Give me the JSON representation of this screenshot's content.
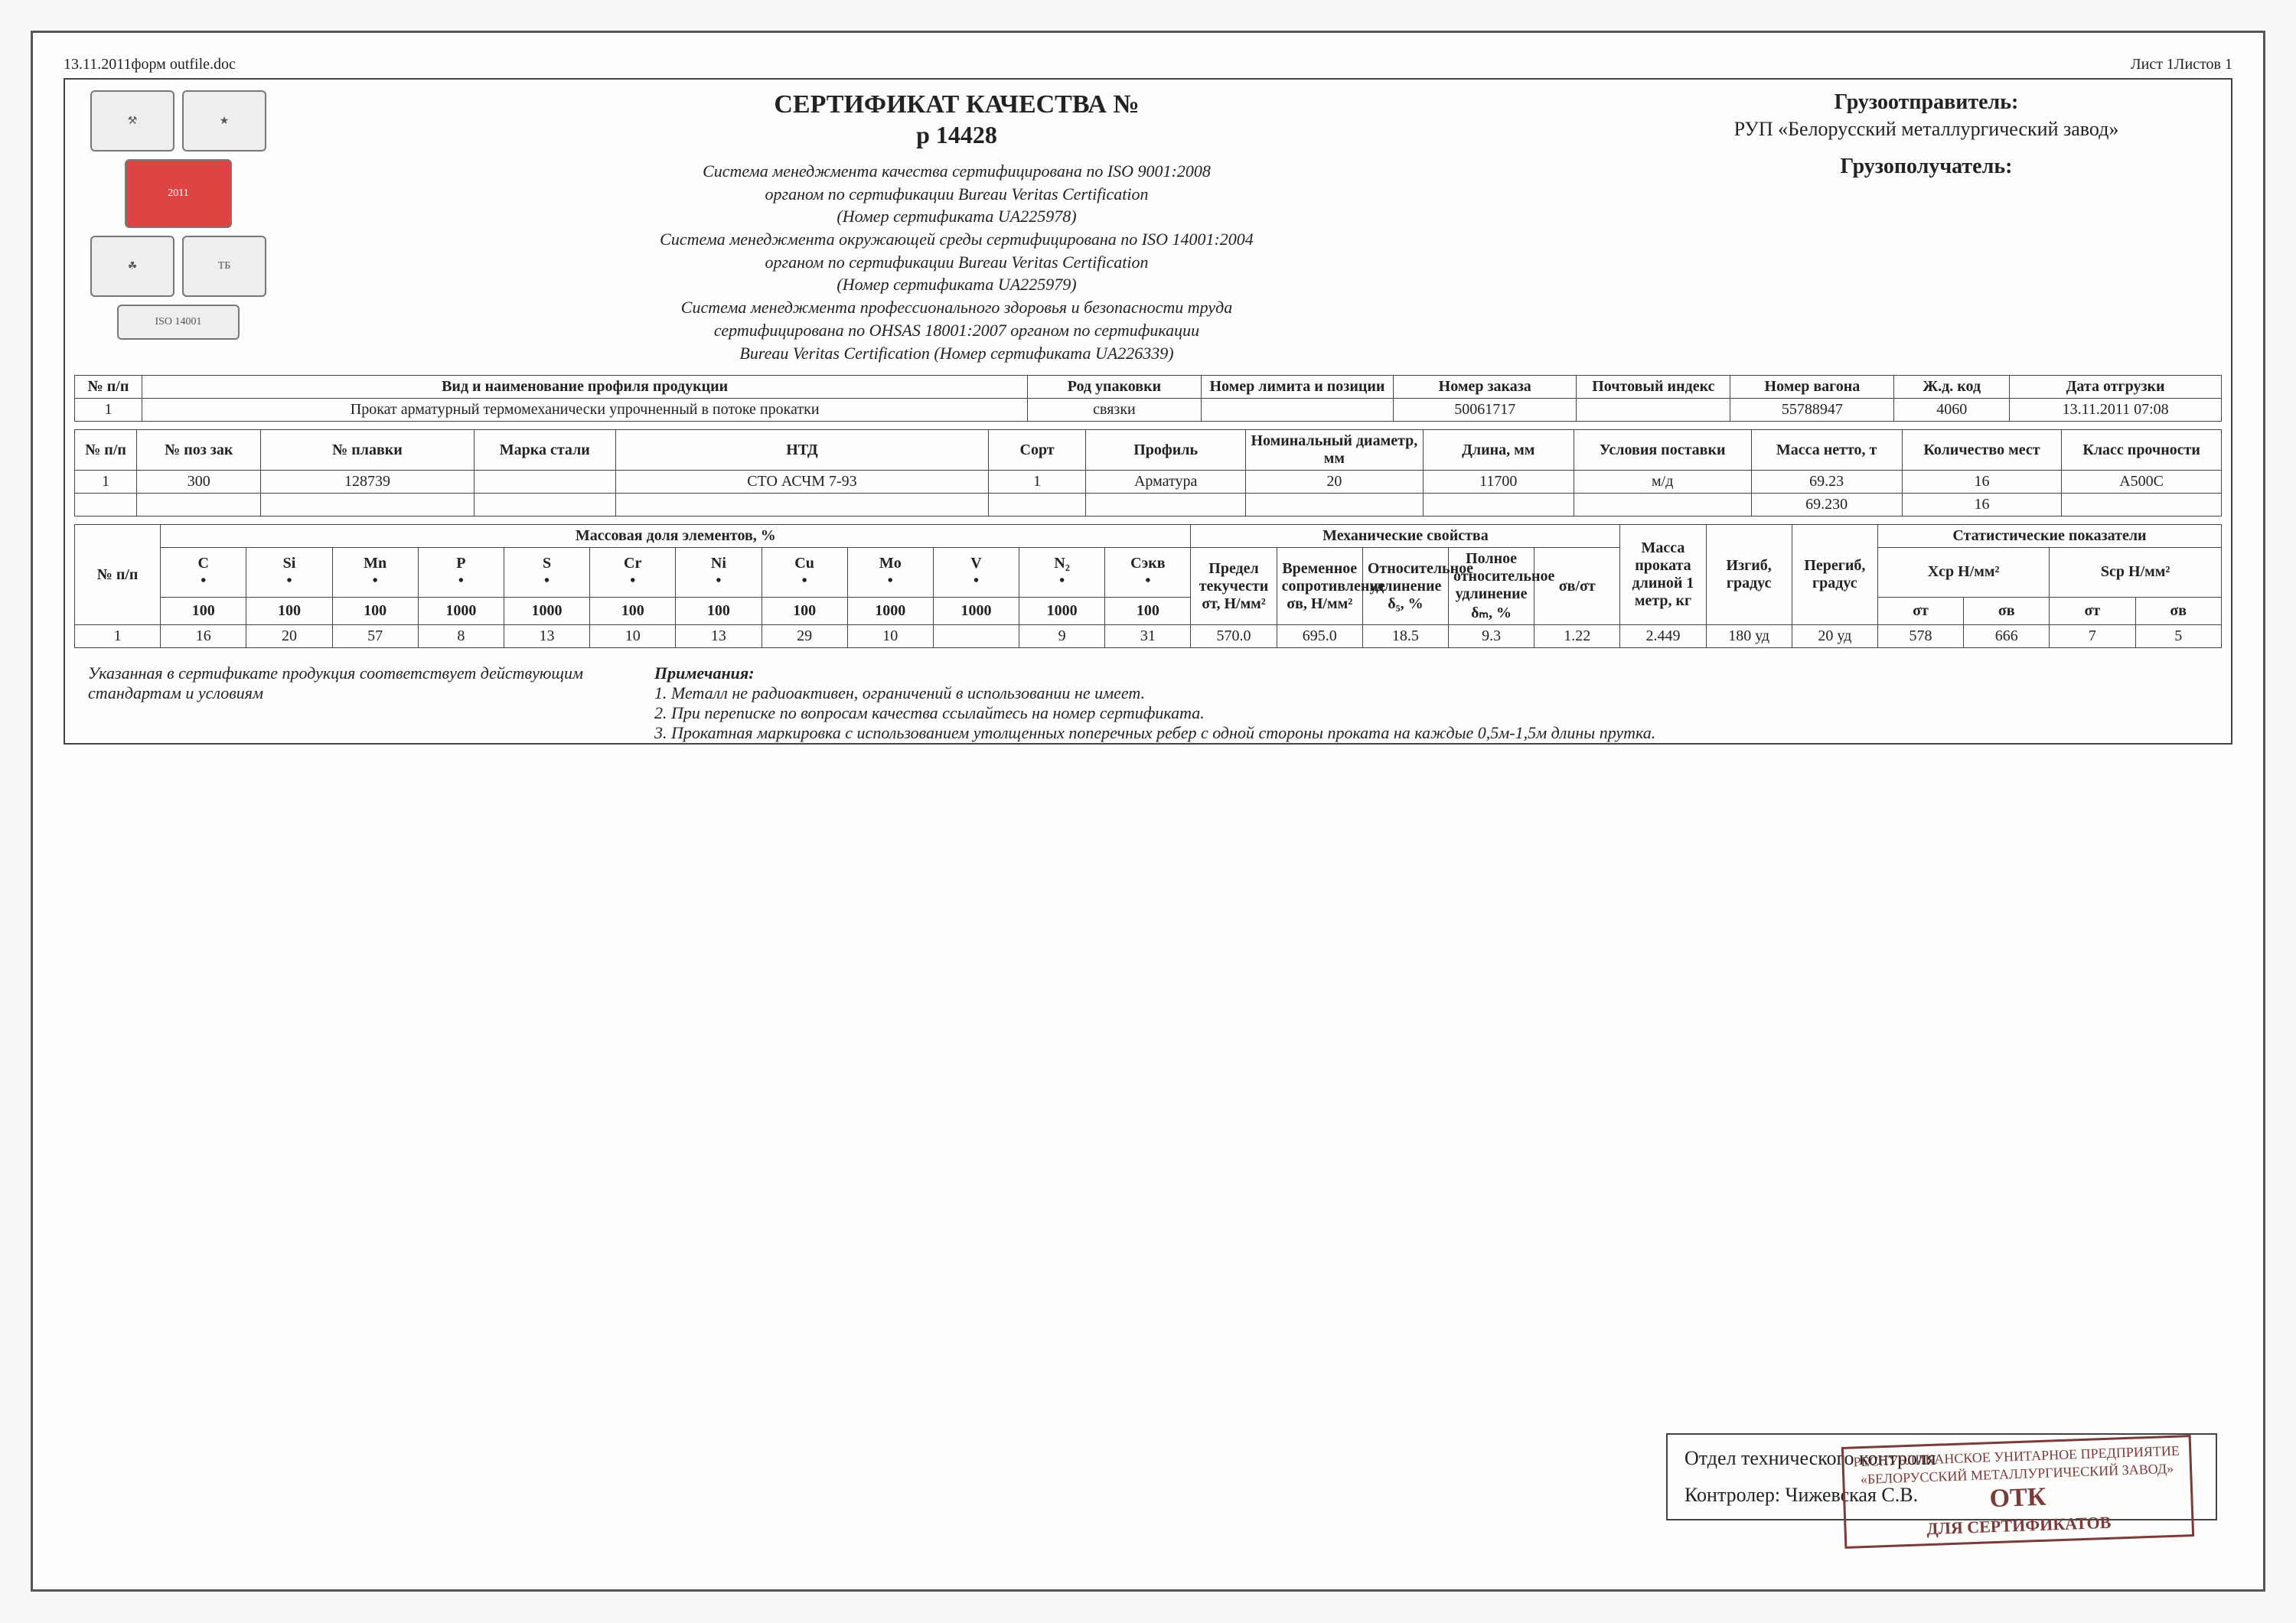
{
  "doc_header": {
    "left": "13.11.2011форм outfile.doc",
    "right": "Лист 1Листов 1"
  },
  "header": {
    "title": "СЕРТИФИКАТ КАЧЕСТВА №",
    "number": "р 14428",
    "systems": [
      "Система менеджмента качества сертифицирована по ISO 9001:2008",
      "органом по сертификации Bureau Veritas Certification",
      "(Номер сертификата UA225978)",
      "Система менеджмента окружающей среды сертифицирована по ISO 14001:2004",
      "органом по сертификации Bureau Veritas Certification",
      "(Номер сертификата UA225979)",
      "Система менеджмента профессионального здоровья и безопасности труда",
      "сертифицирована по OHSAS 18001:2007 органом по сертификации",
      "Bureau Veritas Certification   (Номер сертификата UA226339)"
    ]
  },
  "right": {
    "shipper_label": "Грузоотправитель:",
    "plant": "РУП «Белорусский металлургический завод»",
    "consignee_label": "Грузополучатель:"
  },
  "table1": {
    "headers": [
      "№ п/п",
      "Вид и наименование профиля продукции",
      "Род упаковки",
      "Номер лимита и позиции",
      "Номер заказа",
      "Почтовый индекс",
      "Номер вагона",
      "Ж.д. код",
      "Дата отгрузки"
    ],
    "row": [
      "1",
      "Прокат арматурный термомеханически упрочненный в потоке прокатки",
      "связки",
      "",
      "50061717",
      "",
      "55788947",
      "4060",
      "13.11.2011 07:08"
    ],
    "widths": [
      70,
      920,
      180,
      200,
      190,
      160,
      170,
      120,
      220
    ]
  },
  "table2": {
    "headers": [
      "№ п/п",
      "№ поз зак",
      "№ плавки",
      "Марка стали",
      "НТД",
      "Сорт",
      "Профиль",
      "Номинальный диаметр, мм",
      "Длина, мм",
      "Условия поставки",
      "Масса нетто, т",
      "Количество мест",
      "Класс прочности"
    ],
    "row": [
      "1",
      "300",
      "128739",
      "",
      "СТО АСЧМ 7-93",
      "1",
      "Арматура",
      "20",
      "11700",
      "м/д",
      "69.23",
      "16",
      "A500C"
    ],
    "row2": [
      "",
      "",
      "",
      "",
      "",
      "",
      "",
      "",
      "",
      "",
      "69.230",
      "16",
      ""
    ],
    "widths": [
      70,
      140,
      240,
      160,
      420,
      110,
      180,
      200,
      170,
      200,
      170,
      180,
      180
    ]
  },
  "table3": {
    "group_headers": {
      "chem": "Массовая доля элементов, %",
      "mech": "Механические свойства",
      "stat": "Статистические показатели"
    },
    "chem_cols": [
      "C",
      "Si",
      "Mn",
      "P",
      "S",
      "Cr",
      "Ni",
      "Cu",
      "Mo",
      "V",
      "N₂",
      "Cэкв"
    ],
    "chem_mult": [
      "100",
      "100",
      "100",
      "1000",
      "1000",
      "100",
      "100",
      "100",
      "1000",
      "1000",
      "1000",
      "100"
    ],
    "mech_cols": [
      "Предел текучести σт, Н/мм²",
      "Временное сопротивление σв, Н/мм²",
      "Относительное удлинение δ₅, %",
      "Полное относительное удлинение δₘ, %",
      "σв/σт"
    ],
    "extra_cols": [
      "Масса проката длиной 1 метр, кг",
      "Изгиб, градус",
      "Перегиб, градус"
    ],
    "stat_top": [
      "Xср Н/мм²",
      "Sср Н/мм²"
    ],
    "stat_sub": [
      "σт",
      "σв",
      "σт",
      "σв"
    ],
    "row_num": "1",
    "chem_row": [
      "16",
      "20",
      "57",
      "8",
      "13",
      "10",
      "13",
      "29",
      "10",
      "",
      "9",
      "31"
    ],
    "mech_row": [
      "570.0",
      "695.0",
      "18.5",
      "9.3",
      "1.22"
    ],
    "extra_row": [
      "2.449",
      "180 уд",
      "20 уд"
    ],
    "stat_row": [
      "578",
      "666",
      "7",
      "5"
    ],
    "np_label": "№ п/п"
  },
  "notes": {
    "left": "Указанная в сертификате продукция соответствует действующим стандартам и условиям",
    "title": "Примечания:",
    "items": [
      "1. Металл не радиоактивен, ограничений   в использовании не имеет.",
      "2. При переписке по вопросам качества ссылайтесь на  номер сертификата.",
      "3. Прокатная маркировка с использованием утолщенных поперечных ребер с одной стороны проката  на каждые 0,5м-1,5м длины прутка."
    ]
  },
  "footer": {
    "dept": "Отдел технического контроля",
    "controller_label": "Контролер:",
    "controller_name": "Чижевская С.В.",
    "stamp_line1": "РЕСПУБЛИКАНСКОЕ УНИТАРНОЕ ПРЕДПРИЯТИЕ",
    "stamp_line2": "«БЕЛОРУССКИЙ МЕТАЛЛУРГИЧЕСКИЙ ЗАВОД»",
    "stamp_big": "ОТК",
    "stamp_bottom": "ДЛЯ СЕРТИФИКАТОВ"
  },
  "logos": {
    "iso": "ISO 14001",
    "tb": "ТБ",
    "year": "2011"
  },
  "style": {
    "border_color": "#444",
    "bg": "#fdfdfb",
    "stamp_color": "#7a3b3b",
    "font_title": 34,
    "font_body": 22
  }
}
